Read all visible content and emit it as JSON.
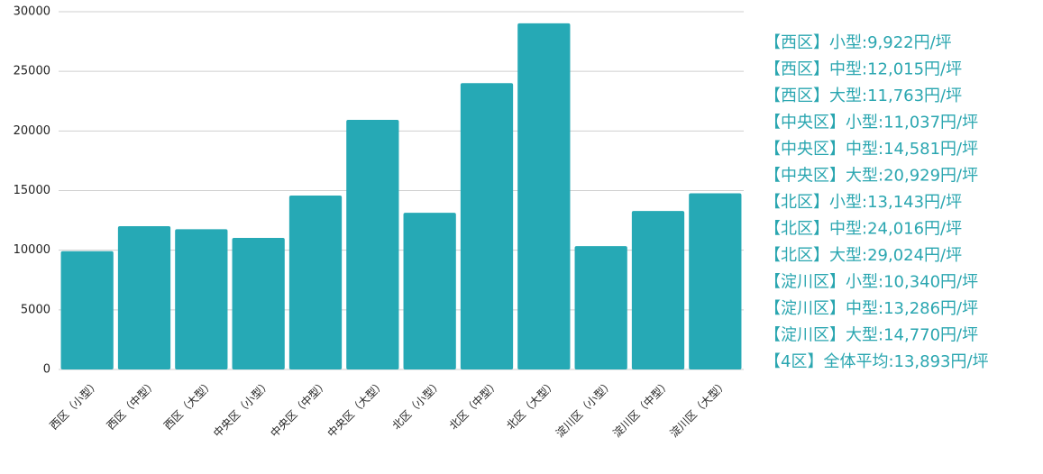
{
  "chart_data": {
    "type": "bar",
    "categories": [
      "西区（小型）",
      "西区（中型）",
      "西区（大型）",
      "中央区（小型）",
      "中央区（中型）",
      "中央区（大型）",
      "北区（小型）",
      "北区（中型）",
      "北区（大型）",
      "淀川区（小型）",
      "淀川区（中型）",
      "淀川区（大型）"
    ],
    "values": [
      9922,
      12015,
      11763,
      11037,
      14581,
      20929,
      13143,
      24016,
      29024,
      10340,
      13286,
      14770
    ],
    "color": "#26a9b5",
    "ylim": [
      0,
      30000
    ],
    "yticks": [
      0,
      5000,
      10000,
      15000,
      20000,
      25000,
      30000
    ],
    "grid": true,
    "annotations": [
      "【西区】小型:9,922円/坪",
      "【西区】中型:12,015円/坪",
      "【西区】大型:11,763円/坪",
      "【中央区】小型:11,037円/坪",
      "【中央区】中型:14,581円/坪",
      "【中央区】大型:20,929円/坪",
      "【北区】小型:13,143円/坪",
      "【北区】中型:24,016円/坪",
      "【北区】大型:29,024円/坪",
      "【淀川区】小型:10,340円/坪",
      "【淀川区】中型:13,286円/坪",
      "【淀川区】大型:14,770円/坪",
      "【4区】全体平均:13,893円/坪"
    ]
  }
}
